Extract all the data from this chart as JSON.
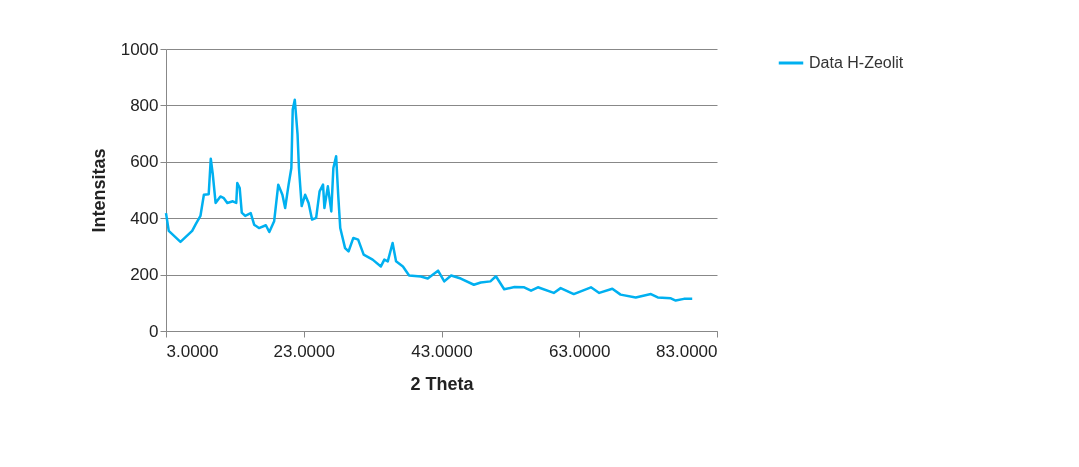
{
  "chart_data": {
    "type": "line",
    "xlabel": "2 Theta",
    "ylabel": "Intensitas",
    "legend": "right",
    "grid": "y",
    "marker": "none",
    "line_style": "solid",
    "xlim": [
      3,
      83
    ],
    "xticks": [
      {
        "value": 3,
        "label": "3.0000"
      },
      {
        "value": 23,
        "label": "23.0000"
      },
      {
        "value": 43,
        "label": "43.0000"
      },
      {
        "value": 63,
        "label": "63.0000"
      },
      {
        "value": 83,
        "label": "83.0000"
      }
    ],
    "ylim": [
      0,
      1000
    ],
    "yticks": [
      0,
      200,
      400,
      600,
      800,
      1000
    ],
    "series": [
      {
        "name": "Data H-Zeolit",
        "color": "#00b0f0",
        "x": [
          3.0,
          3.4,
          5.1,
          6.8,
          7.3,
          8.0,
          8.5,
          9.2,
          9.5,
          9.8,
          10.2,
          10.9,
          11.4,
          11.9,
          12.7,
          13.2,
          13.35,
          13.7,
          14.0,
          14.5,
          15.3,
          15.8,
          16.5,
          17.5,
          18.0,
          18.7,
          19.3,
          19.9,
          20.3,
          20.8,
          21.2,
          21.4,
          21.7,
          22.1,
          22.3,
          22.7,
          23.2,
          23.7,
          24.2,
          24.8,
          25.3,
          25.8,
          26.0,
          26.5,
          27.0,
          27.3,
          27.7,
          28.0,
          28.3,
          29.0,
          29.5,
          30.2,
          30.9,
          31.7,
          33.0,
          34.2,
          34.7,
          35.2,
          35.9,
          36.4,
          37.4,
          38.3,
          40.0,
          41.0,
          42.5,
          43.4,
          44.4,
          45.8,
          47.7,
          48.7,
          50.1,
          50.9,
          52.1,
          53.6,
          55.0,
          56.0,
          57.0,
          59.3,
          60.3,
          62.2,
          64.7,
          65.9,
          67.8,
          69.0,
          71.2,
          73.4,
          74.4,
          76.3,
          77.0,
          78.2,
          79.4
        ],
        "values": [
          418,
          355,
          316,
          355,
          378,
          408,
          483,
          485,
          611,
          554,
          454,
          477,
          471,
          454,
          460,
          454,
          525,
          507,
          420,
          408,
          418,
          377,
          365,
          375,
          351,
          389,
          519,
          483,
          436,
          519,
          578,
          785,
          820,
          697,
          578,
          443,
          483,
          454,
          395,
          401,
          495,
          519,
          436,
          513,
          424,
          578,
          620,
          483,
          365,
          294,
          282,
          330,
          324,
          271,
          253,
          229,
          253,
          247,
          312,
          247,
          229,
          197,
          193,
          186,
          214,
          176,
          197,
          186,
          164,
          172,
          176,
          194,
          148,
          156,
          155,
          143,
          155,
          135,
          152,
          131,
          155,
          135,
          150,
          129,
          119,
          131,
          119,
          116,
          108,
          114,
          114
        ]
      }
    ]
  }
}
